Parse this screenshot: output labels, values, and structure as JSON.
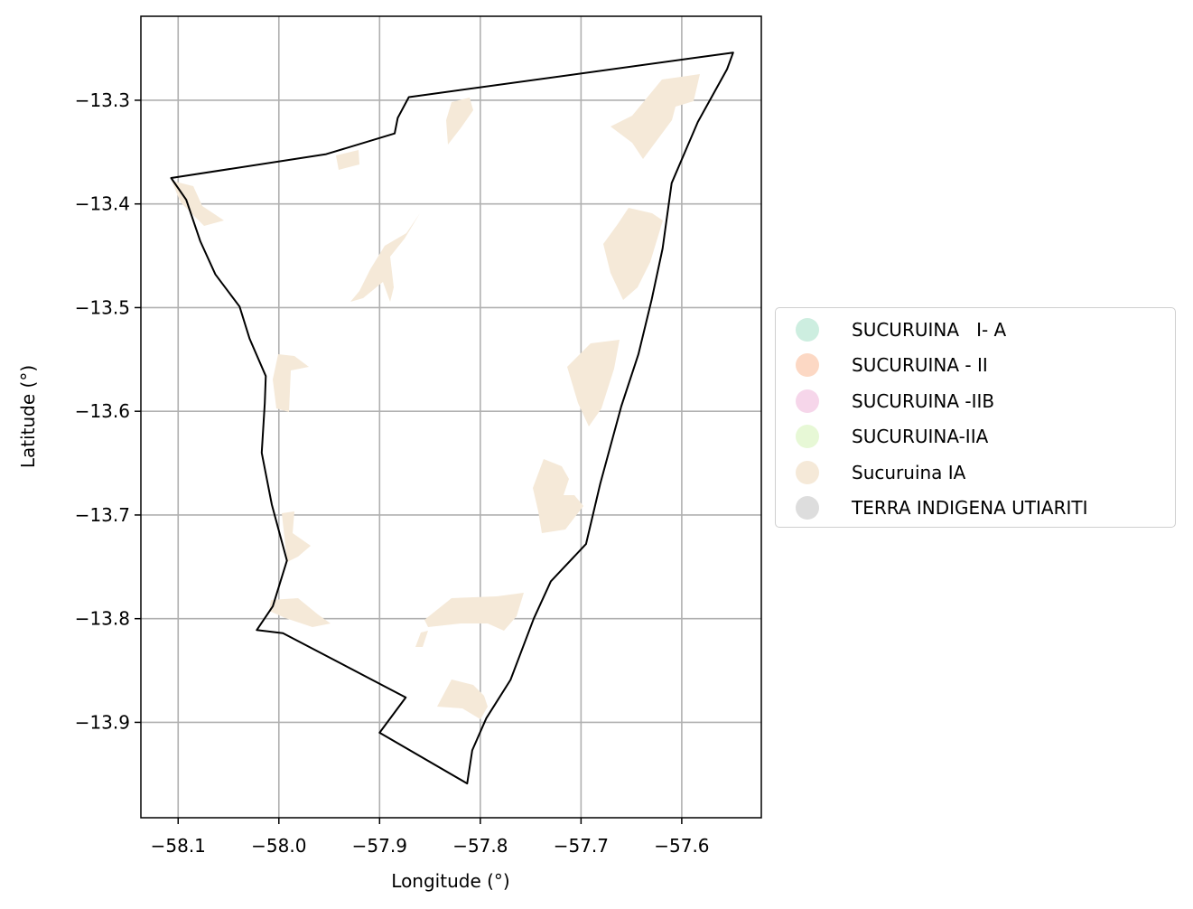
{
  "map": {
    "xlabel": "Longitude (°)",
    "ylabel": "Latitude (°)",
    "xticks": [
      -58.1,
      -58.0,
      -57.9,
      -57.8,
      -57.7,
      -57.6
    ],
    "xtick_labels": [
      "−58.1",
      "−58.0",
      "−57.9",
      "−57.8",
      "−57.7",
      "−57.6"
    ],
    "yticks": [
      -13.3,
      -13.4,
      -13.5,
      -13.6,
      -13.7,
      -13.8,
      -13.9
    ],
    "ytick_labels": [
      "−13.3",
      "−13.4",
      "−13.5",
      "−13.6",
      "−13.7",
      "−13.8",
      "−13.9"
    ],
    "xlim": [
      -58.137,
      -57.521
    ],
    "ylim": [
      -13.992,
      -13.219
    ],
    "grid": true,
    "boundary_color": "#000000",
    "fill_color": "#f5e9d8",
    "boundary_lonlat": [
      [
        -57.549,
        -13.254
      ],
      [
        -57.871,
        -13.297
      ],
      [
        -57.882,
        -13.317
      ],
      [
        -57.885,
        -13.332
      ],
      [
        -57.953,
        -13.352
      ],
      [
        -58.107,
        -13.375
      ],
      [
        -58.092,
        -13.396
      ],
      [
        -58.078,
        -13.436
      ],
      [
        -58.063,
        -13.468
      ],
      [
        -58.039,
        -13.499
      ],
      [
        -58.029,
        -13.53
      ],
      [
        -58.013,
        -13.566
      ],
      [
        -58.014,
        -13.592
      ],
      [
        -58.017,
        -13.64
      ],
      [
        -58.007,
        -13.69
      ],
      [
        -57.992,
        -13.744
      ],
      [
        -58.006,
        -13.788
      ],
      [
        -58.022,
        -13.811
      ],
      [
        -57.996,
        -13.814
      ],
      [
        -57.874,
        -13.876
      ],
      [
        -57.9,
        -13.91
      ],
      [
        -57.813,
        -13.959
      ],
      [
        -57.808,
        -13.927
      ],
      [
        -57.794,
        -13.896
      ],
      [
        -57.77,
        -13.859
      ],
      [
        -57.747,
        -13.8
      ],
      [
        -57.73,
        -13.764
      ],
      [
        -57.695,
        -13.728
      ],
      [
        -57.681,
        -13.67
      ],
      [
        -57.66,
        -13.595
      ],
      [
        -57.643,
        -13.545
      ],
      [
        -57.63,
        -13.493
      ],
      [
        -57.619,
        -13.443
      ],
      [
        -57.61,
        -13.38
      ],
      [
        -57.584,
        -13.321
      ],
      [
        -57.555,
        -13.27
      ],
      [
        -57.549,
        -13.254
      ]
    ],
    "outer_polygon_name": "TERRA INDIGENA UTIARITI"
  },
  "legend": {
    "items": [
      {
        "label": "SUCURUINA   I- A",
        "color": "#cdeee0"
      },
      {
        "label": "SUCURUINA - II",
        "color": "#fcd8c4"
      },
      {
        "label": "SUCURUINA -IIB",
        "color": "#f6d6ea"
      },
      {
        "label": "SUCURUINA-IIA",
        "color": "#e7f8d6"
      },
      {
        "label": "Sucuruina IA",
        "color": "#f5e9d8"
      },
      {
        "label": "TERRA INDIGENA UTIARITI",
        "color": "#dddddd"
      }
    ]
  }
}
